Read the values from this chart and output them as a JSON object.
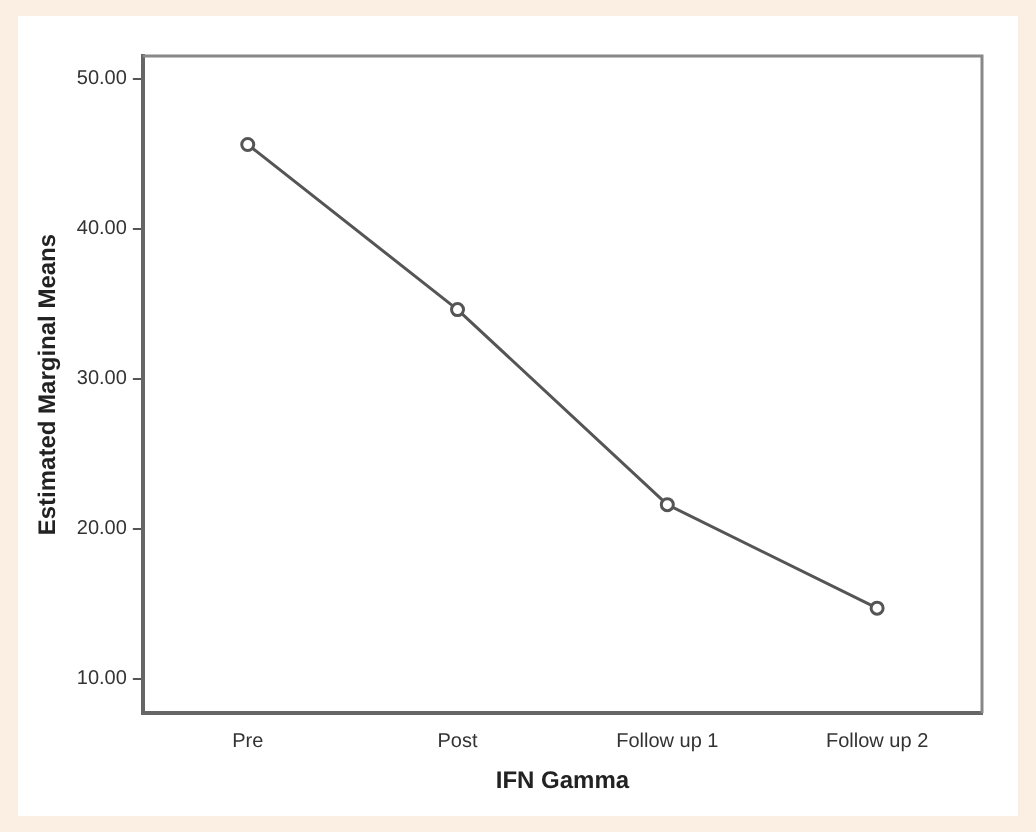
{
  "chart_data": {
    "type": "line",
    "xlabel": "IFN Gamma",
    "ylabel": "Estimated Marginal Means",
    "categories": [
      "Pre",
      "Post",
      "Follow up 1",
      "Follow up 2"
    ],
    "series": [
      {
        "color": "#555555",
        "values": [
          45.6,
          34.6,
          21.6,
          14.7
        ]
      }
    ],
    "ylim": [
      7.7,
      51.5
    ],
    "yticks": [
      {
        "value": 10,
        "label": "10.00"
      },
      {
        "value": 20,
        "label": "20.00"
      },
      {
        "value": 30,
        "label": "30.00"
      },
      {
        "value": 40,
        "label": "40.00"
      },
      {
        "value": 50,
        "label": "50.00"
      }
    ],
    "grid": false,
    "legend": false,
    "marker": "circle",
    "line_style": "solid"
  }
}
